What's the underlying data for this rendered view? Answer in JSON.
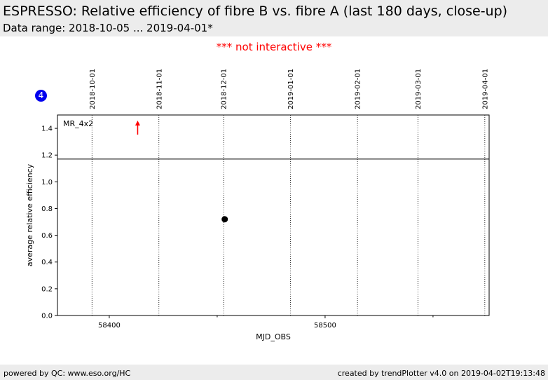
{
  "header": {
    "title": "ESPRESSO: Relative efficiency of fibre B vs. fibre A (last 180 days, close-up)",
    "subtitle": "Data range: 2018-10-05 ... 2019-04-01*"
  },
  "notice": "*** not interactive ***",
  "badge": "4",
  "footer": {
    "left": "powered by QC: www.eso.org/HC",
    "right": "created by trendPlotter v4.0 on 2019-04-02T19:13:48"
  },
  "colors": {
    "header_bg": "#ececec",
    "notice": "#ff0000",
    "badge": "#0000ee",
    "outlier": "#ff0000"
  },
  "chart_data": {
    "type": "scatter",
    "xlabel": "MJD_OBS",
    "ylabel": "average relative efficiency",
    "xlim": [
      58376,
      58576
    ],
    "ylim": [
      0,
      1.5
    ],
    "xticks": [
      58400,
      58500
    ],
    "x_minor_ticks": [
      58450,
      58550
    ],
    "yticks": [
      0.0,
      0.2,
      0.4,
      0.6,
      0.8,
      1.0,
      1.2,
      1.4
    ],
    "ytick_labels": [
      "0.0",
      "0.2",
      "0.4",
      "0.6",
      "0.8",
      "1.0",
      "1.2",
      "1.4"
    ],
    "plot_range_top": 1.17,
    "date_markers": [
      {
        "label": "2018-10-01",
        "mjd": 58392
      },
      {
        "label": "2018-11-01",
        "mjd": 58423
      },
      {
        "label": "2018-12-01",
        "mjd": 58453
      },
      {
        "label": "2019-01-01",
        "mjd": 58484
      },
      {
        "label": "2019-02-01",
        "mjd": 58515
      },
      {
        "label": "2019-03-01",
        "mjd": 58543
      },
      {
        "label": "2019-04-01",
        "mjd": 58574
      }
    ],
    "series": [
      {
        "points": [
          {
            "x": 58453.5,
            "y": 0.72
          }
        ]
      }
    ],
    "outliers": [
      {
        "x": 58389,
        "direction": "up"
      }
    ],
    "annotations": [
      {
        "text": "MR_4x2"
      }
    ]
  }
}
